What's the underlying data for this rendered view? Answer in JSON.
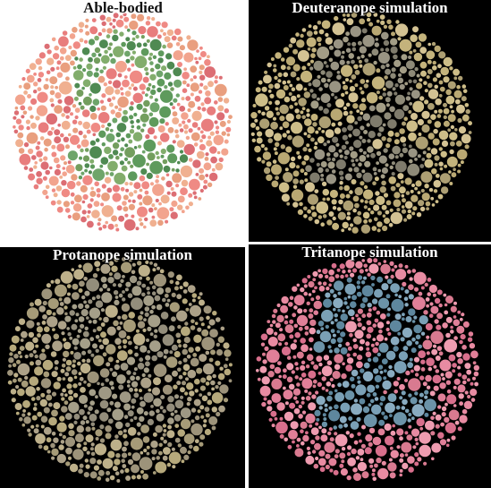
{
  "panels": [
    {
      "label": "Able-bodied",
      "background": "#ffffff",
      "figure_digit": 2,
      "figure_colors": [
        "#5e9a5c",
        "#6ea56a",
        "#4f8a52",
        "#82ad6c",
        "#739e5e"
      ],
      "ground_colors": [
        "#e87d7d",
        "#ef8a84",
        "#e99f7f",
        "#f2a48e",
        "#dc6e74",
        "#f0b090"
      ]
    },
    {
      "label": "Deuteranope simulation",
      "background": "#000000",
      "figure_digit": 2,
      "figure_colors": [
        "#8e8a78",
        "#999483",
        "#7f7b6c",
        "#a39d86"
      ],
      "ground_colors": [
        "#c4b37c",
        "#b9a873",
        "#cdbd88",
        "#ad9f73",
        "#d3c293"
      ]
    },
    {
      "label": "Protanope simulation",
      "background": "#000000",
      "figure_digit": 2,
      "figure_colors": [
        "#9e9884",
        "#a59f89",
        "#938d7b"
      ],
      "ground_colors": [
        "#a69b78",
        "#b6a97c",
        "#9d937a",
        "#aca188",
        "#bdb08a"
      ]
    },
    {
      "label": "Tritanope simulation",
      "background": "#000000",
      "figure_digit": 2,
      "figure_colors": [
        "#6b93a8",
        "#7aa0b6",
        "#5e879e",
        "#89abc0"
      ],
      "ground_colors": [
        "#e07f98",
        "#e88ba2",
        "#d86f8c",
        "#ee9cb0",
        "#d97a90"
      ]
    }
  ]
}
